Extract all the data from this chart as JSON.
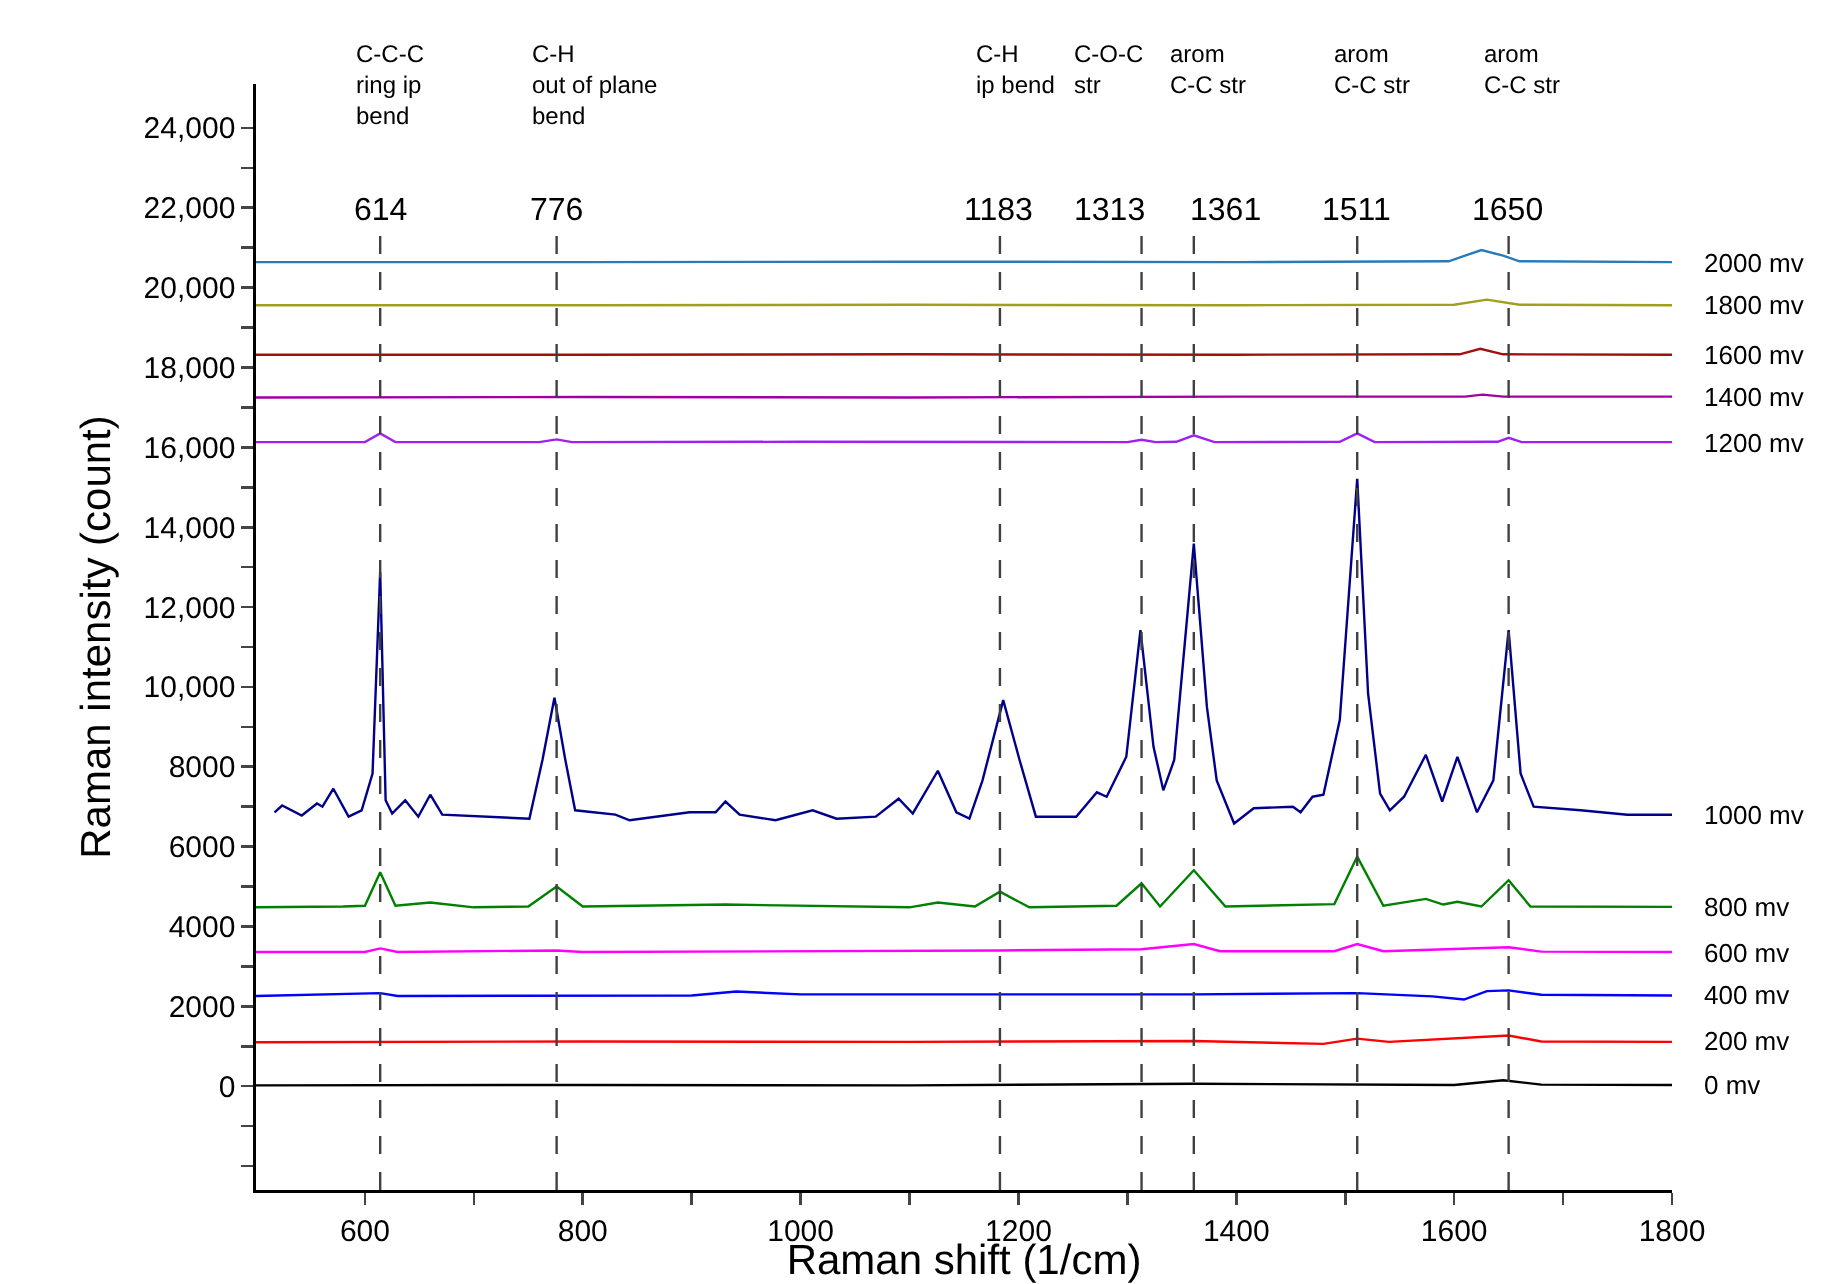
{
  "chart_data": {
    "type": "line",
    "xlabel": "Raman shift (1/cm)",
    "ylabel": "Raman intensity (count)",
    "legend": false,
    "xlim": [
      500,
      1800
    ],
    "ylim": [
      -2600,
      25100
    ],
    "xticks": [
      600,
      {
        "value": 700,
        "label": null
      },
      800,
      {
        "value": 900,
        "label": null
      },
      1000,
      {
        "value": 1100,
        "label": null
      },
      1200,
      {
        "value": 1300,
        "label": null
      },
      1400,
      {
        "value": 1500,
        "label": null
      },
      1600,
      {
        "value": 1700,
        "label": null
      },
      1800
    ],
    "yticks": [
      {
        "value": -2000,
        "label": null
      },
      {
        "value": -1000,
        "label": null
      },
      0,
      {
        "value": 1000,
        "label": null
      },
      2000,
      {
        "value": 3000,
        "label": null
      },
      4000,
      {
        "value": 5000,
        "label": null
      },
      6000,
      {
        "value": 7000,
        "label": null
      },
      8000,
      {
        "value": 9000,
        "label": null
      },
      {
        "value": 10000,
        "label": "10,000"
      },
      {
        "value": 11000,
        "label": null
      },
      {
        "value": 12000,
        "label": "12,000"
      },
      {
        "value": 13000,
        "label": null
      },
      {
        "value": 14000,
        "label": "14,000"
      },
      {
        "value": 15000,
        "label": null
      },
      {
        "value": 16000,
        "label": "16,000"
      },
      {
        "value": 17000,
        "label": null
      },
      {
        "value": 18000,
        "label": "18,000"
      },
      {
        "value": 19000,
        "label": null
      },
      {
        "value": 20000,
        "label": "20,000"
      },
      {
        "value": 21000,
        "label": null
      },
      {
        "value": 22000,
        "label": "22,000"
      },
      {
        "value": 23000,
        "label": null
      },
      {
        "value": 24000,
        "label": "24,000"
      }
    ],
    "series": [
      {
        "name": "0 mv",
        "color": "#000000",
        "x": [
          500,
          800,
          1100,
          1361,
          1600,
          1645,
          1680,
          1800
        ],
        "values": [
          20,
          30,
          20,
          60,
          30,
          150,
          40,
          30
        ]
      },
      {
        "name": "200 mv",
        "color": "#ff0000",
        "x": [
          500,
          800,
          1100,
          1361,
          1480,
          1511,
          1540,
          1650,
          1680,
          1800
        ],
        "values": [
          1100,
          1120,
          1110,
          1130,
          1060,
          1190,
          1110,
          1270,
          1120,
          1110
        ]
      },
      {
        "name": "400 mv",
        "color": "#0000ff",
        "x": [
          500,
          614,
          630,
          900,
          941,
          1000,
          1361,
          1511,
          1580,
          1609,
          1630,
          1650,
          1680,
          1800
        ],
        "values": [
          2260,
          2330,
          2260,
          2270,
          2370,
          2300,
          2300,
          2330,
          2250,
          2170,
          2380,
          2400,
          2290,
          2270
        ]
      },
      {
        "name": "600 mv",
        "color": "#ff00ff",
        "x": [
          500,
          600,
          614,
          630,
          776,
          800,
          1183,
          1313,
          1361,
          1385,
          1490,
          1511,
          1535,
          1650,
          1680,
          1800
        ],
        "values": [
          3360,
          3360,
          3450,
          3360,
          3400,
          3360,
          3400,
          3430,
          3560,
          3380,
          3380,
          3560,
          3380,
          3480,
          3370,
          3360
        ]
      },
      {
        "name": "800 mv",
        "color": "#008000",
        "x": [
          500,
          580,
          600,
          614,
          628,
          660,
          700,
          750,
          776,
          800,
          931,
          1100,
          1126,
          1160,
          1183,
          1210,
          1290,
          1313,
          1330,
          1361,
          1390,
          1490,
          1511,
          1535,
          1574,
          1590,
          1603,
          1625,
          1650,
          1670,
          1800
        ],
        "values": [
          4480,
          4500,
          4520,
          5360,
          4520,
          4600,
          4480,
          4500,
          5000,
          4500,
          4550,
          4480,
          4600,
          4500,
          4870,
          4480,
          4520,
          5080,
          4500,
          5410,
          4500,
          4560,
          5750,
          4520,
          4690,
          4550,
          4620,
          4500,
          5160,
          4500,
          4490
        ]
      },
      {
        "name": "1000 mv",
        "color": "#00008b",
        "x": [
          517,
          524,
          542,
          556,
          561,
          571,
          585,
          597,
          607,
          614,
          619,
          625,
          637,
          649,
          660,
          671,
          751,
          763,
          774,
          784,
          793,
          830,
          843,
          898,
          922,
          931,
          944,
          977,
          1011,
          1033,
          1069,
          1090,
          1103,
          1126,
          1143,
          1155,
          1167,
          1186,
          1201,
          1216,
          1238,
          1253,
          1272,
          1281,
          1299,
          1312,
          1324,
          1333,
          1343,
          1361,
          1373,
          1382,
          1398,
          1416,
          1452,
          1459,
          1470,
          1480,
          1495,
          1511,
          1521,
          1532,
          1541,
          1554,
          1574,
          1589,
          1603,
          1621,
          1636,
          1650,
          1661,
          1673,
          1716,
          1759,
          1800
        ],
        "values": [
          6860,
          7030,
          6780,
          7080,
          7000,
          7450,
          6750,
          6910,
          7830,
          12880,
          7160,
          6830,
          7160,
          6750,
          7300,
          6800,
          6700,
          8170,
          9730,
          8170,
          6910,
          6800,
          6660,
          6860,
          6860,
          7130,
          6800,
          6660,
          6910,
          6700,
          6750,
          7200,
          6830,
          7900,
          6860,
          6700,
          7660,
          9670,
          8170,
          6750,
          6750,
          6750,
          7360,
          7250,
          8250,
          11420,
          8500,
          7410,
          8170,
          13590,
          9500,
          7660,
          6580,
          6960,
          7000,
          6860,
          7250,
          7300,
          9170,
          15210,
          9830,
          7330,
          6910,
          7250,
          8300,
          7130,
          8250,
          6860,
          7660,
          11420,
          7830,
          7000,
          6910,
          6800,
          6800
        ]
      },
      {
        "name": "1200 mv",
        "color": "#a020f0",
        "x": [
          500,
          600,
          614,
          628,
          760,
          776,
          790,
          1000,
          1300,
          1313,
          1326,
          1345,
          1361,
          1380,
          1495,
          1511,
          1527,
          1640,
          1650,
          1662,
          1800
        ],
        "values": [
          16130,
          16130,
          16350,
          16130,
          16130,
          16200,
          16130,
          16140,
          16130,
          16190,
          16130,
          16140,
          16300,
          16130,
          16140,
          16350,
          16130,
          16140,
          16240,
          16130,
          16130
        ]
      },
      {
        "name": "1400 mv",
        "color": "#a000a0",
        "x": [
          500,
          800,
          1100,
          1400,
          1610,
          1626,
          1645,
          1800
        ],
        "values": [
          17250,
          17260,
          17250,
          17270,
          17270,
          17320,
          17270,
          17270
        ]
      },
      {
        "name": "1600 mv",
        "color": "#a01010",
        "x": [
          500,
          800,
          1100,
          1400,
          1605,
          1624,
          1645,
          1800
        ],
        "values": [
          18320,
          18320,
          18330,
          18320,
          18330,
          18470,
          18330,
          18320
        ]
      },
      {
        "name": "1800 mv",
        "color": "#a0a020",
        "x": [
          500,
          800,
          1100,
          1400,
          1600,
          1630,
          1660,
          1800
        ],
        "values": [
          19560,
          19560,
          19570,
          19560,
          19570,
          19700,
          19570,
          19560
        ]
      },
      {
        "name": "2000 mv",
        "color": "#2a7ab8",
        "x": [
          500,
          800,
          1100,
          1400,
          1595,
          1610,
          1625,
          1645,
          1660,
          1800
        ],
        "values": [
          20640,
          20640,
          20650,
          20640,
          20660,
          20800,
          20940,
          20800,
          20660,
          20640
        ]
      }
    ],
    "ref_lines": [
      {
        "axis": "x",
        "value": 614,
        "label": "614",
        "color": "#404040",
        "line_style": "dashed"
      },
      {
        "axis": "x",
        "value": 776,
        "label": "776",
        "color": "#404040",
        "line_style": "dashed"
      },
      {
        "axis": "x",
        "value": 1183,
        "label": "1183",
        "color": "#404040",
        "line_style": "dashed"
      },
      {
        "axis": "x",
        "value": 1313,
        "label": "1313",
        "color": "#404040",
        "line_style": "dashed"
      },
      {
        "axis": "x",
        "value": 1361,
        "label": "1361",
        "color": "#404040",
        "line_style": "dashed"
      },
      {
        "axis": "x",
        "value": 1511,
        "label": "1511",
        "color": "#404040",
        "line_style": "dashed"
      },
      {
        "axis": "x",
        "value": 1650,
        "label": "1650",
        "color": "#404040",
        "line_style": "dashed"
      }
    ],
    "annotations": [
      "C-C-C\nring ip\nbend",
      "C-H\nout of plane\nbend",
      "C-H\nip bend",
      "C-O-C\nstr",
      "arom\nC-C str",
      "arom\nC-C str",
      "arom\nC-C str"
    ]
  }
}
